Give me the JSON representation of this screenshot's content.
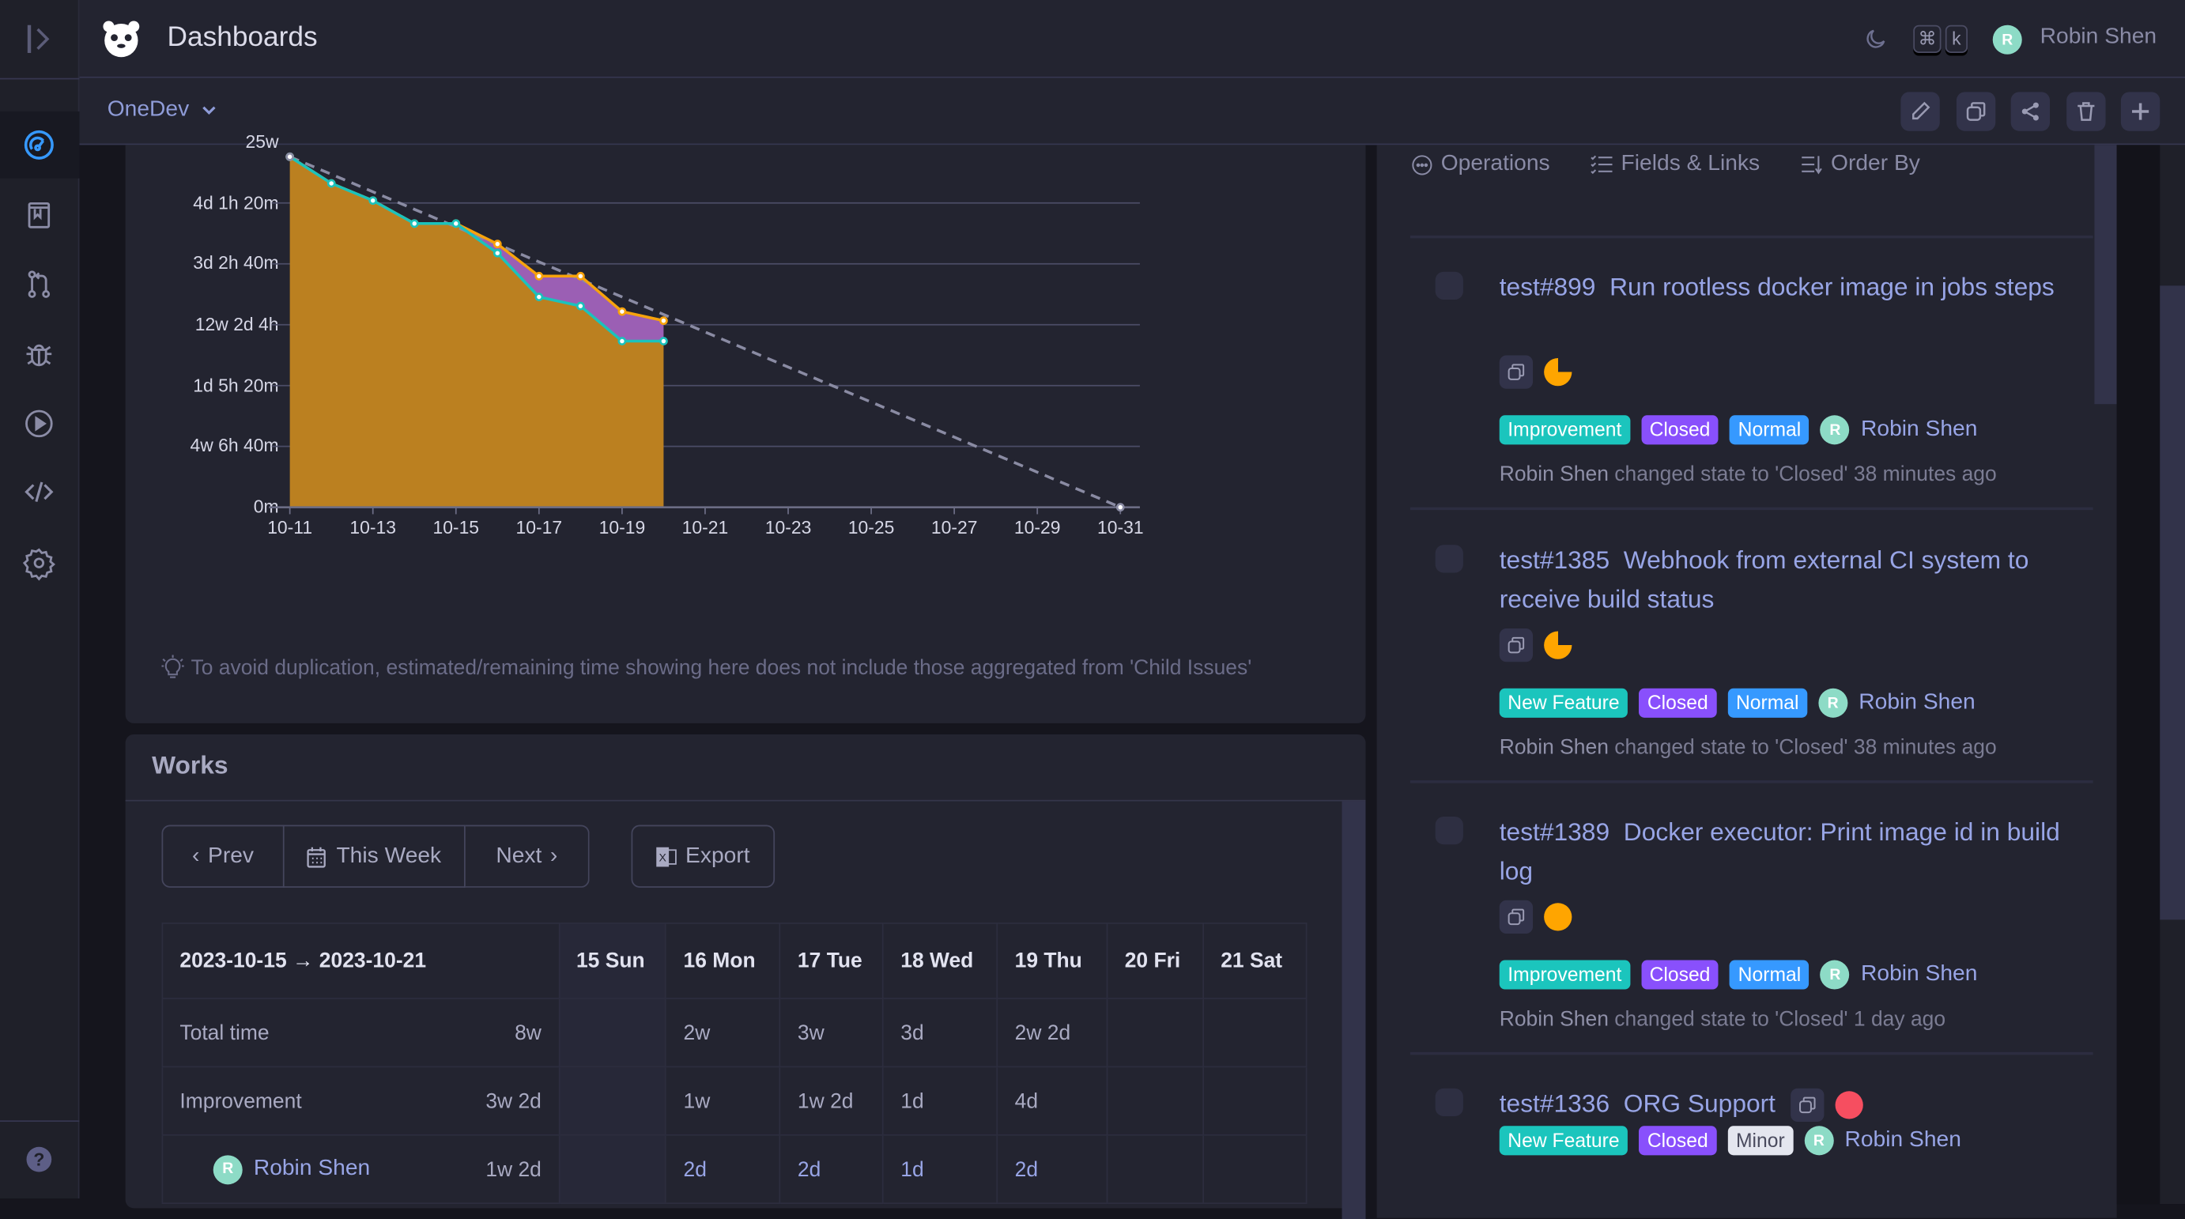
{
  "header": {
    "title": "Dashboards",
    "user": "Robin Shen",
    "avatar_letter": "R",
    "kbd": [
      "⌘",
      "k"
    ]
  },
  "subbar": {
    "dashboard": "OneDev",
    "actions": [
      "edit",
      "copy",
      "share",
      "delete",
      "add"
    ]
  },
  "sidebar": {
    "items": [
      "dashboards",
      "code-repository",
      "pull-requests",
      "issues",
      "builds",
      "packages",
      "settings"
    ],
    "active": "dashboards"
  },
  "chart_data": {
    "type": "area",
    "x": [
      "10-11",
      "10-12",
      "10-13",
      "10-14",
      "10-15",
      "10-16",
      "10-17",
      "10-18",
      "10-19",
      "10-20"
    ],
    "xticks": [
      "10-11",
      "10-13",
      "10-15",
      "10-17",
      "10-19",
      "10-21",
      "10-23",
      "10-25",
      "10-27",
      "10-29",
      "10-31"
    ],
    "yticks": [
      {
        "value": 0,
        "label": "0m"
      },
      {
        "value": 166.67,
        "label": "4w 6h 40m"
      },
      {
        "value": 333.33,
        "label": "1d 5h 20m"
      },
      {
        "value": 500,
        "label": "12w 2d 4h"
      },
      {
        "value": 666.67,
        "label": "3d 2h 40m"
      },
      {
        "value": 833.33,
        "label": "4d 1h 20m"
      },
      {
        "value": 1000,
        "label": "25w"
      }
    ],
    "ylim": [
      0,
      1000
    ],
    "series": [
      {
        "values": [
          960,
          887,
          840,
          777,
          777,
          721,
          633,
          633,
          536,
          511
        ],
        "color": "#f7a30c"
      },
      {
        "values": [
          960,
          887,
          840,
          777,
          777,
          696,
          576,
          551,
          455,
          455
        ],
        "color": "#1bc2bc"
      }
    ],
    "ideal": {
      "from": [
        "10-11",
        960
      ],
      "to": [
        "10-31",
        0
      ],
      "color": "#8a8ba3"
    },
    "fill_colors": {
      "below": "#bb8020",
      "between": "#9b5fb4"
    },
    "grid": true
  },
  "chart_note": "To avoid duplication, estimated/remaining time showing here does not include those aggregated from 'Child Issues'",
  "works": {
    "title": "Works",
    "prev": "Prev",
    "this_week": "This Week",
    "next": "Next",
    "export": "Export",
    "range": "2023-10-15 → 2023-10-21",
    "days": [
      "15 Sun",
      "16 Mon",
      "17 Tue",
      "18 Wed",
      "19 Thu",
      "20 Fri",
      "21 Sat"
    ],
    "rows": [
      {
        "label": "Total time",
        "total": "8w",
        "cells": [
          "",
          "2w",
          "3w",
          "3d",
          "2w 2d",
          "",
          ""
        ]
      },
      {
        "label": "Improvement",
        "total": "3w 2d",
        "cells": [
          "",
          "1w",
          "1w 2d",
          "1d",
          "4d",
          "",
          ""
        ]
      },
      {
        "label": "Robin Shen",
        "avatar": "R",
        "total": "1w 2d",
        "cells": [
          "",
          "2d",
          "2d",
          "1d",
          "2d",
          "",
          ""
        ]
      }
    ]
  },
  "issues_panel": {
    "toolbar": [
      "Operations",
      "Fields & Links",
      "Order By"
    ],
    "issues": [
      {
        "number": "test#899",
        "title": "Run rootless docker image in jobs steps",
        "type": "Improvement",
        "state": "Closed",
        "priority": "Normal",
        "assignee": "Robin Shen",
        "activity_user": "Robin Shen",
        "activity": "changed state to 'Closed' 38 minutes ago",
        "progress": 0.75,
        "progress_color": "#ffa500"
      },
      {
        "number": "test#1385",
        "title": "Webhook from external CI system to receive build status",
        "type": "New Feature",
        "state": "Closed",
        "priority": "Normal",
        "assignee": "Robin Shen",
        "activity_user": "Robin Shen",
        "activity": "changed state to 'Closed' 38 minutes ago",
        "progress": 0.75,
        "progress_color": "#ffa500"
      },
      {
        "number": "test#1389",
        "title": "Docker executor: Print image id in build log",
        "type": "Improvement",
        "state": "Closed",
        "priority": "Normal",
        "assignee": "Robin Shen",
        "activity_user": "Robin Shen",
        "activity": "changed state to 'Closed' 1 day ago",
        "progress": 1,
        "progress_color": "#ffa500"
      },
      {
        "number": "test#1336",
        "title": "ORG Support",
        "type": "New Feature",
        "state": "Closed",
        "priority": "Minor",
        "assignee": "Robin Shen",
        "progress": 1,
        "progress_color": "#f64e60"
      }
    ]
  },
  "colors": {
    "type": "#1bc5bd",
    "state": "#8950fc",
    "normal": "#3699ff",
    "minor": "#e4e6ef",
    "accent": "#3699ff"
  }
}
